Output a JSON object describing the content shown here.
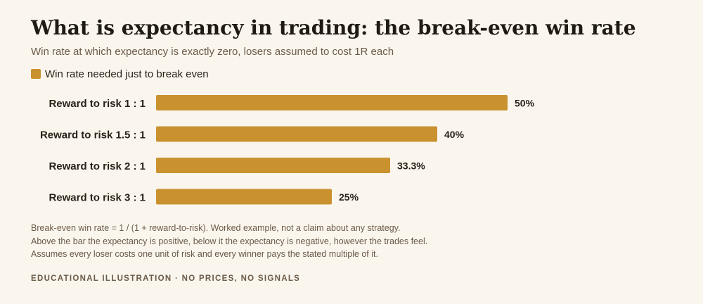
{
  "title": "What is expectancy in trading: the break-even win rate",
  "subtitle": "Win rate at which expectancy is exactly zero, losers assumed to cost 1R each",
  "legend": {
    "label": "Win rate needed just to break even",
    "color": "#c9922f"
  },
  "chart_data": {
    "type": "bar",
    "orientation": "horizontal",
    "categories": [
      "Reward to risk 1 : 1",
      "Reward to risk 1.5 : 1",
      "Reward to risk 2 : 1",
      "Reward to risk 3 : 1"
    ],
    "series": [
      {
        "name": "Win rate needed just to break even",
        "values": [
          50,
          40,
          33.3,
          25
        ],
        "labels": [
          "50%",
          "40%",
          "33.3%",
          "25%"
        ]
      }
    ],
    "xlim": [
      0,
      50
    ],
    "grid": false,
    "legend_position": "top-left"
  },
  "notes": [
    "Break-even win rate = 1 / (1 + reward-to-risk). Worked example, not a claim about any strategy.",
    "Above the bar the expectancy is positive, below it the expectancy is negative, however the trades feel.",
    "Assumes every loser costs one unit of risk and every winner pays the stated multiple of it."
  ],
  "footer": "EDUCATIONAL ILLUSTRATION · NO PRICES, NO SIGNALS"
}
